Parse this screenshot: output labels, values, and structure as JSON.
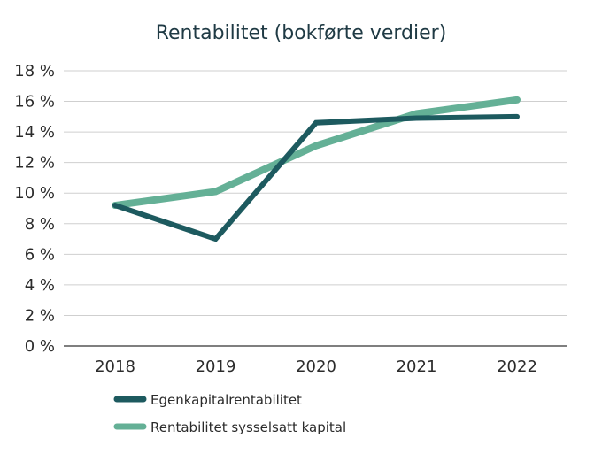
{
  "chart_data": {
    "type": "line",
    "title": "Rentabilitet (bokførte verdier)",
    "categories": [
      "2018",
      "2019",
      "2020",
      "2021",
      "2022"
    ],
    "y_tick_labels": [
      "0 %",
      "2 %",
      "4 %",
      "6 %",
      "8 %",
      "10 %",
      "12 %",
      "14 %",
      "16 %",
      "18 %"
    ],
    "ylim": [
      0,
      18
    ],
    "ystep": 2,
    "grid": true,
    "legend_position": "bottom-left",
    "series": [
      {
        "name": "Egenkapitalrentabilitet",
        "color": "#1d5a5f",
        "values": [
          9.2,
          7.0,
          14.6,
          14.9,
          15.0
        ]
      },
      {
        "name": "Rentabilitet sysselsatt kapital",
        "color": "#64b096",
        "values": [
          9.2,
          10.1,
          13.1,
          15.2,
          16.1
        ]
      }
    ]
  }
}
